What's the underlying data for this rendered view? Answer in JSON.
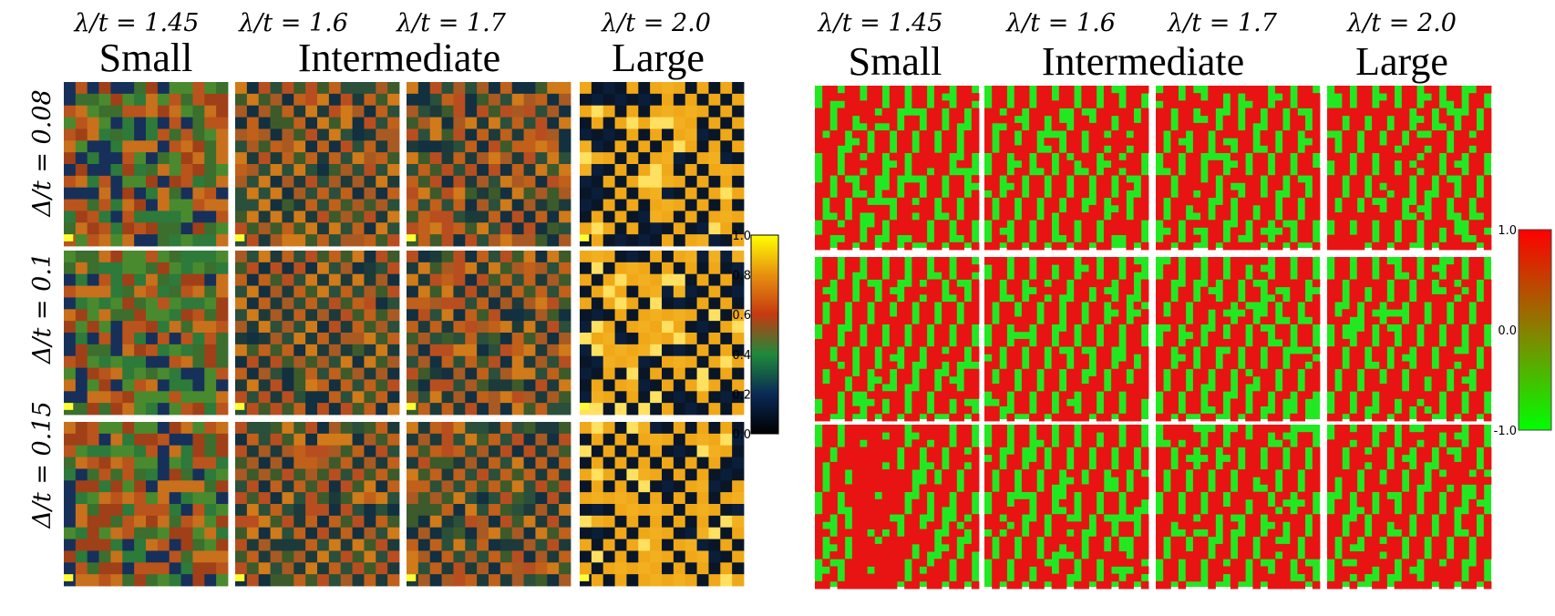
{
  "columns": [
    {
      "lambda_label": "λ/t = 1.45",
      "regime": "Small"
    },
    {
      "lambda_label": "λ/t = 1.6",
      "regime": "Intermediate"
    },
    {
      "lambda_label": "λ/t = 1.7",
      "regime": ""
    },
    {
      "lambda_label": "λ/t = 2.0",
      "regime": "Large"
    }
  ],
  "rows": [
    {
      "delta_label": "Δ/t = 0.08"
    },
    {
      "delta_label": "Δ/t = 0.1"
    },
    {
      "delta_label": "Δ/t = 0.15"
    }
  ],
  "chart_data": [
    {
      "type": "heatmap",
      "panel": "left",
      "title": "",
      "colorbar": {
        "ticks": [
          "0.0",
          "0.2",
          "0.4",
          "0.6",
          "0.8",
          "1.0"
        ],
        "range": [
          0.0,
          1.0
        ],
        "colors": [
          "#000000",
          "#0a2a55",
          "#1f8a3a",
          "#c43a10",
          "#e8900f",
          "#ffff00"
        ]
      }
    },
    {
      "type": "heatmap",
      "panel": "right",
      "title": "",
      "colorbar": {
        "ticks": [
          "1.0",
          "0.0",
          "-1.0"
        ],
        "range": [
          -1.0,
          1.0
        ],
        "colors": [
          "#00ff00",
          "#888000",
          "#ff0000"
        ]
      }
    }
  ]
}
